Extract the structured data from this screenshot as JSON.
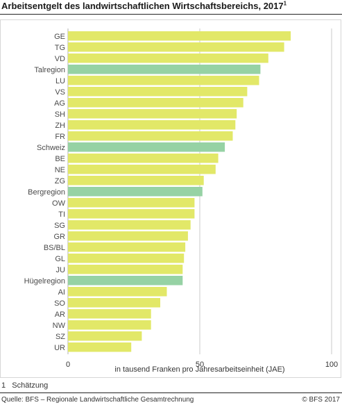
{
  "header": {
    "title": "Arbeitsentgelt des landwirtschaftlichen Wirtschaftsbereichs, 2017",
    "title_footnote_mark": "1"
  },
  "chart_data": {
    "type": "bar",
    "orientation": "horizontal",
    "categories": [
      "GE",
      "TG",
      "VD",
      "Talregion",
      "LU",
      "VS",
      "AG",
      "SH",
      "ZH",
      "FR",
      "Schweiz",
      "BE",
      "NE",
      "ZG",
      "Bergregion",
      "OW",
      "TI",
      "SG",
      "GR",
      "BS/BL",
      "GL",
      "JU",
      "Hügelregion",
      "AI",
      "SO",
      "AR",
      "NW",
      "SZ",
      "UR"
    ],
    "values": [
      84.5,
      82,
      76,
      73,
      72.5,
      68,
      66.5,
      64,
      63.5,
      62.5,
      59.5,
      57,
      56,
      51.5,
      51,
      48,
      48,
      46.5,
      45.5,
      44.5,
      44,
      43.5,
      43.5,
      37.5,
      35,
      31.5,
      31.5,
      28,
      24
    ],
    "highlighted_categories": [
      "Talregion",
      "Schweiz",
      "Bergregion",
      "Hügelregion"
    ],
    "xlabel": "in tausend Franken pro Jahresarbeitseinheit (JAE)",
    "ylabel": "",
    "xlim": [
      0,
      100
    ],
    "xticks": [
      0,
      50,
      100
    ],
    "grid": true,
    "colors": {
      "bar": "#e2e868",
      "highlight": "#96d2a4",
      "gridline": "#c8c8c8",
      "axis": "#b0b0b0",
      "label": "#4a4a4a"
    }
  },
  "footnote": {
    "number": "1",
    "text": "Schätzung"
  },
  "footer": {
    "source": "Quelle: BFS – Regionale Landwirtschaftliche Gesamtrechnung",
    "copyright": "© BFS  2017"
  }
}
